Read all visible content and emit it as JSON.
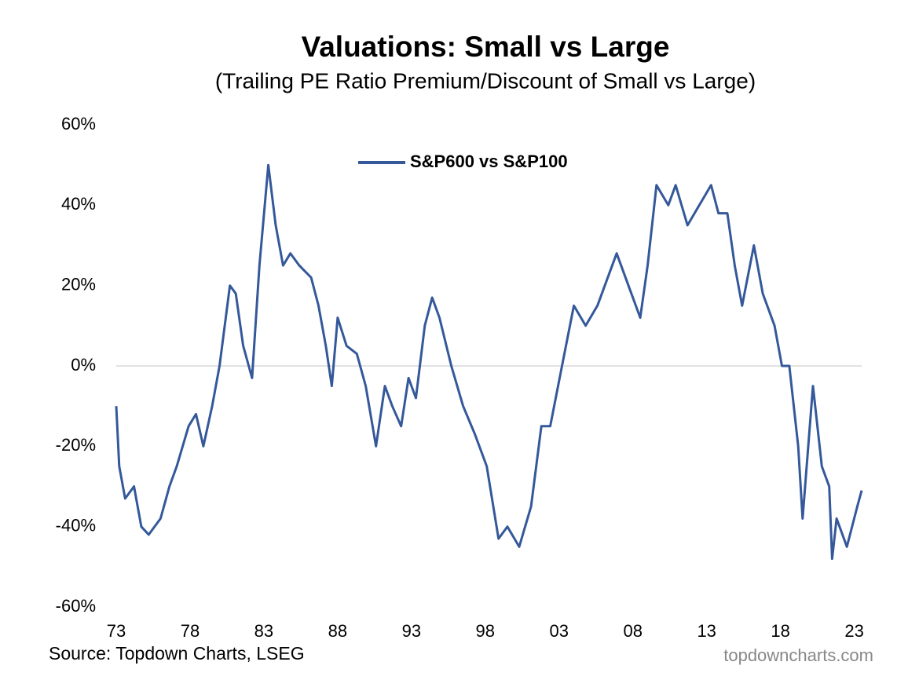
{
  "chart_data": {
    "type": "line",
    "title": "Valuations: Small vs Large",
    "subtitle": "(Trailing PE Ratio Premium/Discount of Small vs Large)",
    "source": "Source: Topdown Charts, LSEG",
    "watermark": "topdowncharts.com",
    "legend_position": "top",
    "zero_line": true,
    "x": [
      1973.0,
      1973.2,
      1973.6,
      1974.2,
      1974.7,
      1975.2,
      1976.0,
      1976.6,
      1977.1,
      1977.9,
      1978.4,
      1978.9,
      1979.5,
      1980.0,
      1980.7,
      1981.1,
      1981.6,
      1982.2,
      1982.7,
      1983.3,
      1983.8,
      1984.3,
      1984.8,
      1985.4,
      1986.2,
      1986.7,
      1987.2,
      1987.6,
      1988.0,
      1988.6,
      1989.3,
      1989.9,
      1990.6,
      1991.2,
      1991.7,
      1992.3,
      1992.8,
      1993.3,
      1993.9,
      1994.4,
      1994.9,
      1995.7,
      1996.5,
      1997.3,
      1998.1,
      1998.9,
      1999.5,
      2000.3,
      2001.1,
      2001.8,
      2002.4,
      2003.2,
      2004.0,
      2004.8,
      2005.6,
      2006.1,
      2006.9,
      2007.7,
      2008.5,
      2009.0,
      2009.6,
      2010.4,
      2010.9,
      2011.7,
      2012.5,
      2013.3,
      2013.8,
      2014.4,
      2014.9,
      2015.4,
      2016.2,
      2016.8,
      2017.6,
      2018.1,
      2018.6,
      2019.2,
      2019.5,
      2020.2,
      2020.8,
      2021.3,
      2021.5,
      2021.8,
      2022.5,
      2023.2,
      2023.5
    ],
    "series": [
      {
        "name": "S&P600 vs S&P100",
        "color": "#34589a",
        "values": [
          -10,
          -25,
          -33,
          -30,
          -40,
          -42,
          -38,
          -30,
          -25,
          -15,
          -12,
          -20,
          -10,
          0,
          20,
          18,
          5,
          -3,
          25,
          50,
          35,
          25,
          28,
          25,
          22,
          15,
          5,
          -5,
          12,
          5,
          3,
          -5,
          -20,
          -5,
          -10,
          -15,
          -3,
          -8,
          10,
          17,
          12,
          0,
          -10,
          -17,
          -25,
          -43,
          -40,
          -45,
          -35,
          -15,
          -15,
          0,
          15,
          10,
          15,
          20,
          28,
          20,
          12,
          25,
          45,
          40,
          45,
          35,
          40,
          45,
          38,
          38,
          25,
          15,
          30,
          18,
          10,
          0,
          0,
          -20,
          -38,
          -5,
          -25,
          -30,
          -48,
          -38,
          -45,
          -35,
          -31
        ]
      }
    ],
    "xlim": [
      1973,
      2023.5
    ],
    "xticks": [
      {
        "value": 1973,
        "label": "73"
      },
      {
        "value": 1978,
        "label": "78"
      },
      {
        "value": 1983,
        "label": "83"
      },
      {
        "value": 1988,
        "label": "88"
      },
      {
        "value": 1993,
        "label": "93"
      },
      {
        "value": 1998,
        "label": "98"
      },
      {
        "value": 2003,
        "label": "03"
      },
      {
        "value": 2008,
        "label": "08"
      },
      {
        "value": 2013,
        "label": "13"
      },
      {
        "value": 2018,
        "label": "18"
      },
      {
        "value": 2023,
        "label": "23"
      }
    ],
    "ylim": [
      -60,
      60
    ],
    "yticks": [
      {
        "value": -60,
        "label": "-60%"
      },
      {
        "value": -40,
        "label": "-40%"
      },
      {
        "value": -20,
        "label": "-20%"
      },
      {
        "value": 0,
        "label": "0%"
      },
      {
        "value": 20,
        "label": "20%"
      },
      {
        "value": 40,
        "label": "40%"
      },
      {
        "value": 60,
        "label": "60%"
      }
    ]
  }
}
